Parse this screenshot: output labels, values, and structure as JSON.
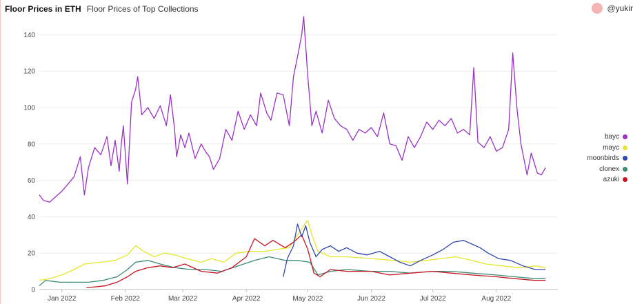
{
  "header": {
    "title": "Floor Prices in ETH",
    "subtitle": "Floor Prices of Top Collections"
  },
  "user": {
    "name": "@yukir",
    "avatar_color": "#f4b4b4"
  },
  "chart_data": {
    "type": "line",
    "title": "Floor Prices in ETH",
    "subtitle": "Floor Prices of Top Collections",
    "x_ticks": [
      "Jan 2022",
      "Feb 2022",
      "Mar 2022",
      "Apr 2022",
      "May 2022",
      "Jun 2022",
      "Jul 2022",
      "Aug 2022"
    ],
    "y_ticks": [
      0,
      20,
      40,
      60,
      80,
      100,
      120,
      140
    ],
    "xlim": [
      "2021-12-21",
      "2022-08-31"
    ],
    "ylim": [
      0,
      150
    ],
    "grid": "horizontal",
    "legend_position": "right",
    "series": [
      {
        "name": "bayc",
        "color": "#9b30c8",
        "points": [
          [
            "2021-12-21",
            52
          ],
          [
            "2021-12-23",
            49
          ],
          [
            "2021-12-26",
            48
          ],
          [
            "2021-12-29",
            51
          ],
          [
            "2022-01-01",
            54
          ],
          [
            "2022-01-04",
            58
          ],
          [
            "2022-01-07",
            62
          ],
          [
            "2022-01-10",
            73
          ],
          [
            "2022-01-12",
            52
          ],
          [
            "2022-01-14",
            67
          ],
          [
            "2022-01-17",
            78
          ],
          [
            "2022-01-20",
            74
          ],
          [
            "2022-01-23",
            84
          ],
          [
            "2022-01-25",
            68
          ],
          [
            "2022-01-27",
            82
          ],
          [
            "2022-01-29",
            65
          ],
          [
            "2022-01-30",
            80
          ],
          [
            "2022-01-31",
            90
          ],
          [
            "2022-02-02",
            58
          ],
          [
            "2022-02-04",
            103
          ],
          [
            "2022-02-06",
            110
          ],
          [
            "2022-02-07",
            117
          ],
          [
            "2022-02-09",
            96
          ],
          [
            "2022-02-12",
            100
          ],
          [
            "2022-02-15",
            94
          ],
          [
            "2022-02-18",
            101
          ],
          [
            "2022-02-21",
            90
          ],
          [
            "2022-02-23",
            107
          ],
          [
            "2022-02-25",
            88
          ],
          [
            "2022-02-26",
            73
          ],
          [
            "2022-02-28",
            85
          ],
          [
            "2022-03-02",
            78
          ],
          [
            "2022-03-04",
            86
          ],
          [
            "2022-03-07",
            72
          ],
          [
            "2022-03-10",
            80
          ],
          [
            "2022-03-12",
            76
          ],
          [
            "2022-03-14",
            73
          ],
          [
            "2022-03-16",
            66
          ],
          [
            "2022-03-19",
            72
          ],
          [
            "2022-03-22",
            88
          ],
          [
            "2022-03-25",
            82
          ],
          [
            "2022-03-28",
            98
          ],
          [
            "2022-03-31",
            88
          ],
          [
            "2022-04-03",
            96
          ],
          [
            "2022-04-06",
            90
          ],
          [
            "2022-04-08",
            108
          ],
          [
            "2022-04-11",
            97
          ],
          [
            "2022-04-13",
            93
          ],
          [
            "2022-04-16",
            108
          ],
          [
            "2022-04-19",
            107
          ],
          [
            "2022-04-22",
            90
          ],
          [
            "2022-04-24",
            117
          ],
          [
            "2022-04-26",
            128
          ],
          [
            "2022-04-28",
            140
          ],
          [
            "2022-04-29",
            150
          ],
          [
            "2022-05-01",
            117
          ],
          [
            "2022-05-03",
            90
          ],
          [
            "2022-05-05",
            98
          ],
          [
            "2022-05-08",
            86
          ],
          [
            "2022-05-11",
            104
          ],
          [
            "2022-05-14",
            94
          ],
          [
            "2022-05-17",
            90
          ],
          [
            "2022-05-20",
            88
          ],
          [
            "2022-05-23",
            82
          ],
          [
            "2022-05-26",
            88
          ],
          [
            "2022-05-29",
            86
          ],
          [
            "2022-06-01",
            89
          ],
          [
            "2022-06-04",
            84
          ],
          [
            "2022-06-07",
            97
          ],
          [
            "2022-06-10",
            80
          ],
          [
            "2022-06-13",
            79
          ],
          [
            "2022-06-16",
            71
          ],
          [
            "2022-06-19",
            84
          ],
          [
            "2022-06-22",
            78
          ],
          [
            "2022-06-25",
            84
          ],
          [
            "2022-06-28",
            92
          ],
          [
            "2022-07-01",
            88
          ],
          [
            "2022-07-04",
            93
          ],
          [
            "2022-07-07",
            90
          ],
          [
            "2022-07-10",
            94
          ],
          [
            "2022-07-13",
            86
          ],
          [
            "2022-07-16",
            88
          ],
          [
            "2022-07-19",
            85
          ],
          [
            "2022-07-21",
            122
          ],
          [
            "2022-07-23",
            81
          ],
          [
            "2022-07-26",
            78
          ],
          [
            "2022-07-29",
            84
          ],
          [
            "2022-08-01",
            76
          ],
          [
            "2022-08-04",
            78
          ],
          [
            "2022-08-07",
            88
          ],
          [
            "2022-08-09",
            130
          ],
          [
            "2022-08-11",
            100
          ],
          [
            "2022-08-13",
            80
          ],
          [
            "2022-08-16",
            63
          ],
          [
            "2022-08-18",
            75
          ],
          [
            "2022-08-21",
            64
          ],
          [
            "2022-08-23",
            63
          ],
          [
            "2022-08-25",
            67
          ]
        ]
      },
      {
        "name": "mayc",
        "color": "#e6e62e",
        "points": [
          [
            "2021-12-21",
            5
          ],
          [
            "2021-12-26",
            6
          ],
          [
            "2022-01-01",
            8
          ],
          [
            "2022-01-07",
            11
          ],
          [
            "2022-01-12",
            14
          ],
          [
            "2022-01-20",
            15
          ],
          [
            "2022-01-27",
            16
          ],
          [
            "2022-02-02",
            19
          ],
          [
            "2022-02-06",
            24
          ],
          [
            "2022-02-10",
            21
          ],
          [
            "2022-02-15",
            18
          ],
          [
            "2022-02-20",
            20
          ],
          [
            "2022-02-25",
            19
          ],
          [
            "2022-03-03",
            17
          ],
          [
            "2022-03-10",
            15
          ],
          [
            "2022-03-15",
            17
          ],
          [
            "2022-03-21",
            15
          ],
          [
            "2022-03-27",
            20
          ],
          [
            "2022-04-03",
            21
          ],
          [
            "2022-04-10",
            21
          ],
          [
            "2022-04-16",
            22
          ],
          [
            "2022-04-22",
            23
          ],
          [
            "2022-04-26",
            30
          ],
          [
            "2022-04-29",
            35
          ],
          [
            "2022-05-01",
            38
          ],
          [
            "2022-05-03",
            30
          ],
          [
            "2022-05-06",
            21
          ],
          [
            "2022-05-12",
            18
          ],
          [
            "2022-05-20",
            18
          ],
          [
            "2022-06-01",
            17
          ],
          [
            "2022-06-12",
            16
          ],
          [
            "2022-06-20",
            15
          ],
          [
            "2022-06-28",
            16
          ],
          [
            "2022-07-05",
            17
          ],
          [
            "2022-07-12",
            18
          ],
          [
            "2022-07-20",
            16
          ],
          [
            "2022-07-27",
            14
          ],
          [
            "2022-08-04",
            13
          ],
          [
            "2022-08-12",
            12
          ],
          [
            "2022-08-20",
            13
          ],
          [
            "2022-08-25",
            12
          ]
        ]
      },
      {
        "name": "moonbirds",
        "color": "#2e45b0",
        "points": [
          [
            "2022-04-19",
            7
          ],
          [
            "2022-04-21",
            17
          ],
          [
            "2022-04-24",
            24
          ],
          [
            "2022-04-26",
            36
          ],
          [
            "2022-04-28",
            29
          ],
          [
            "2022-04-30",
            35
          ],
          [
            "2022-05-02",
            26
          ],
          [
            "2022-05-05",
            18
          ],
          [
            "2022-05-08",
            22
          ],
          [
            "2022-05-12",
            24
          ],
          [
            "2022-05-16",
            21
          ],
          [
            "2022-05-20",
            23
          ],
          [
            "2022-05-25",
            20
          ],
          [
            "2022-05-30",
            19
          ],
          [
            "2022-06-05",
            21
          ],
          [
            "2022-06-10",
            18
          ],
          [
            "2022-06-15",
            15
          ],
          [
            "2022-06-20",
            13
          ],
          [
            "2022-06-25",
            16
          ],
          [
            "2022-07-01",
            19
          ],
          [
            "2022-07-06",
            22
          ],
          [
            "2022-07-11",
            26
          ],
          [
            "2022-07-16",
            27
          ],
          [
            "2022-07-20",
            25
          ],
          [
            "2022-07-24",
            23
          ],
          [
            "2022-07-28",
            20
          ],
          [
            "2022-08-02",
            17
          ],
          [
            "2022-08-08",
            16
          ],
          [
            "2022-08-14",
            13
          ],
          [
            "2022-08-20",
            11
          ],
          [
            "2022-08-25",
            11
          ]
        ]
      },
      {
        "name": "clonex",
        "color": "#3a8a73",
        "points": [
          [
            "2021-12-21",
            2
          ],
          [
            "2021-12-24",
            5
          ],
          [
            "2021-12-31",
            4
          ],
          [
            "2022-01-07",
            4
          ],
          [
            "2022-01-14",
            4
          ],
          [
            "2022-01-21",
            5
          ],
          [
            "2022-01-28",
            7
          ],
          [
            "2022-02-02",
            11
          ],
          [
            "2022-02-06",
            15
          ],
          [
            "2022-02-12",
            16
          ],
          [
            "2022-02-18",
            14
          ],
          [
            "2022-02-25",
            12
          ],
          [
            "2022-03-05",
            11
          ],
          [
            "2022-03-12",
            11
          ],
          [
            "2022-03-20",
            10
          ],
          [
            "2022-03-28",
            13
          ],
          [
            "2022-04-05",
            16
          ],
          [
            "2022-04-12",
            18
          ],
          [
            "2022-04-20",
            16
          ],
          [
            "2022-04-26",
            16
          ],
          [
            "2022-05-02",
            15
          ],
          [
            "2022-05-06",
            8
          ],
          [
            "2022-05-12",
            10
          ],
          [
            "2022-05-20",
            11
          ],
          [
            "2022-06-01",
            10
          ],
          [
            "2022-06-10",
            10
          ],
          [
            "2022-06-20",
            9
          ],
          [
            "2022-07-01",
            10
          ],
          [
            "2022-07-10",
            10
          ],
          [
            "2022-07-20",
            9
          ],
          [
            "2022-08-01",
            8
          ],
          [
            "2022-08-10",
            7
          ],
          [
            "2022-08-20",
            6
          ],
          [
            "2022-08-25",
            6
          ]
        ]
      },
      {
        "name": "azuki",
        "color": "#c8141e",
        "points": [
          [
            "2022-01-13",
            1
          ],
          [
            "2022-01-22",
            2
          ],
          [
            "2022-01-28",
            4
          ],
          [
            "2022-02-02",
            7
          ],
          [
            "2022-02-06",
            10
          ],
          [
            "2022-02-12",
            12
          ],
          [
            "2022-02-18",
            13
          ],
          [
            "2022-02-24",
            12
          ],
          [
            "2022-03-02",
            14
          ],
          [
            "2022-03-10",
            10
          ],
          [
            "2022-03-18",
            9
          ],
          [
            "2022-03-25",
            12
          ],
          [
            "2022-04-01",
            18
          ],
          [
            "2022-04-05",
            28
          ],
          [
            "2022-04-10",
            24
          ],
          [
            "2022-04-14",
            27
          ],
          [
            "2022-04-20",
            23
          ],
          [
            "2022-04-24",
            26
          ],
          [
            "2022-04-28",
            30
          ],
          [
            "2022-05-01",
            22
          ],
          [
            "2022-05-04",
            9
          ],
          [
            "2022-05-07",
            7
          ],
          [
            "2022-05-12",
            11
          ],
          [
            "2022-05-20",
            10
          ],
          [
            "2022-06-01",
            10
          ],
          [
            "2022-06-10",
            8
          ],
          [
            "2022-06-20",
            9
          ],
          [
            "2022-07-01",
            10
          ],
          [
            "2022-07-10",
            9
          ],
          [
            "2022-07-20",
            8
          ],
          [
            "2022-08-01",
            7
          ],
          [
            "2022-08-10",
            6
          ],
          [
            "2022-08-20",
            5
          ],
          [
            "2022-08-25",
            5
          ]
        ]
      }
    ]
  }
}
